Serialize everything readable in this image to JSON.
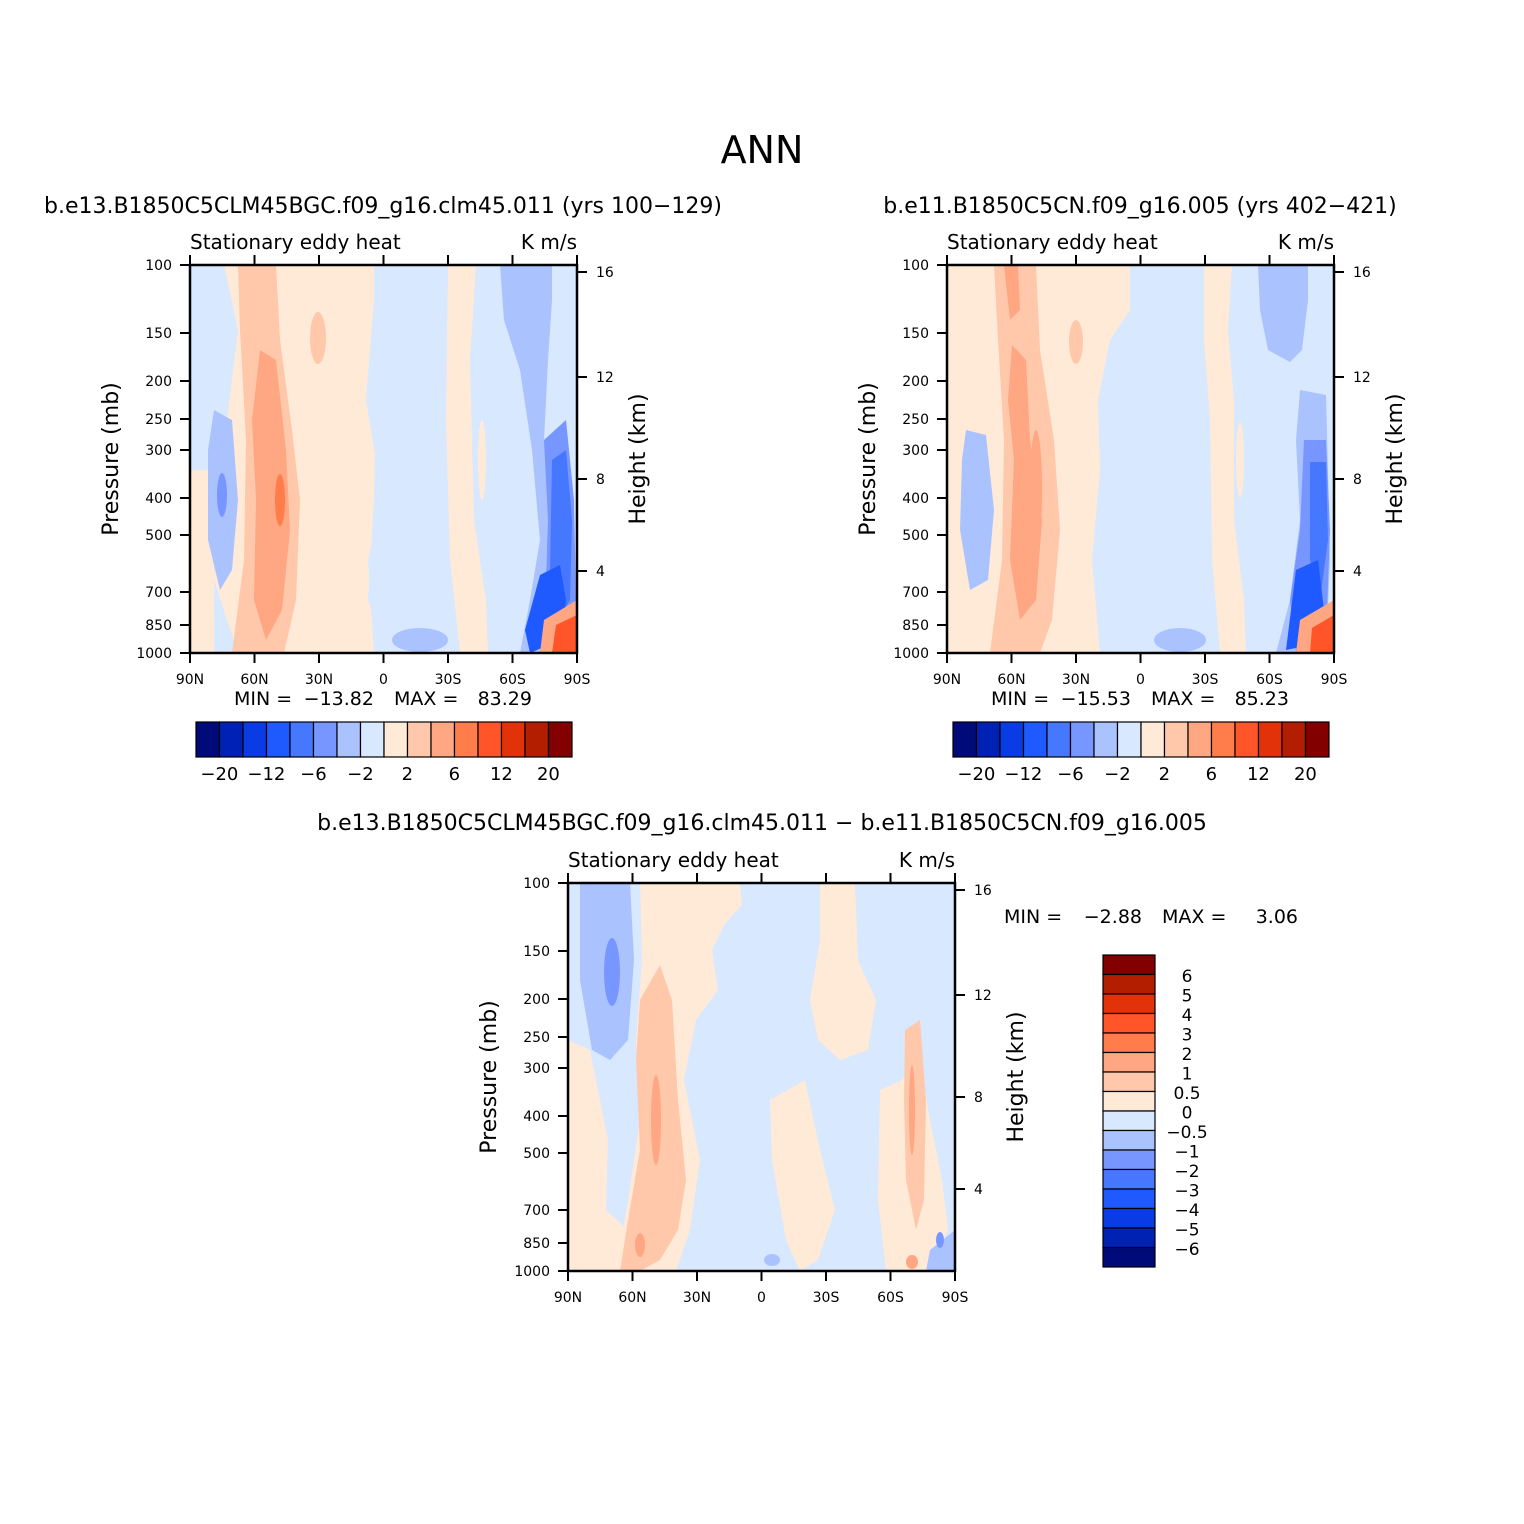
{
  "figure": {
    "title": "ANN"
  },
  "colors": {
    "abs_palette": [
      "#000a78",
      "#0022b4",
      "#0a3ce6",
      "#1e5aff",
      "#4678ff",
      "#7896ff",
      "#aac3ff",
      "#d7e8ff",
      "#ffead8",
      "#ffc8aa",
      "#ffa682",
      "#ff7d4b",
      "#ff5528",
      "#e1320a",
      "#b41e00",
      "#820000"
    ],
    "diff_palette": [
      "#000a78",
      "#0022b4",
      "#0a3ce6",
      "#1e5aff",
      "#4678ff",
      "#7896ff",
      "#aac3ff",
      "#d7e8ff",
      "#ffead8",
      "#ffc8aa",
      "#ffa682",
      "#ff7d4b",
      "#ff5528",
      "#e1320a",
      "#b41e00",
      "#820000"
    ]
  },
  "chart_data": [
    {
      "type": "heatmap",
      "title": "b.e13.B1850C5CLM45BGC.f09_g16.clm45.011 (yrs 100−129)",
      "left_label": "Stationary eddy heat",
      "right_label": "K m/s",
      "ylabel": "Pressure (mb)",
      "y2label": "Height (km)",
      "x_ticks": [
        "90N",
        "60N",
        "30N",
        "0",
        "30S",
        "60S",
        "90S"
      ],
      "y_ticks": [
        "100",
        "150",
        "200",
        "250",
        "300",
        "400",
        "500",
        "700",
        "850",
        "1000"
      ],
      "y2_ticks": [
        "16",
        "12",
        "8",
        "4"
      ],
      "min_label": "MIN =",
      "min_value": "−13.82",
      "max_label": "MAX =",
      "max_value": "83.29",
      "colorbar_labels": [
        "−20",
        "−12",
        "−6",
        "−2",
        "2",
        "6",
        "12",
        "20"
      ]
    },
    {
      "type": "heatmap",
      "title": "b.e11.B1850C5CN.f09_g16.005 (yrs 402−421)",
      "left_label": "Stationary eddy heat",
      "right_label": "K m/s",
      "ylabel": "Pressure (mb)",
      "y2label": "Height (km)",
      "x_ticks": [
        "90N",
        "60N",
        "30N",
        "0",
        "30S",
        "60S",
        "90S"
      ],
      "y_ticks": [
        "100",
        "150",
        "200",
        "250",
        "300",
        "400",
        "500",
        "700",
        "850",
        "1000"
      ],
      "y2_ticks": [
        "16",
        "12",
        "8",
        "4"
      ],
      "min_label": "MIN =",
      "min_value": "−15.53",
      "max_label": "MAX =",
      "max_value": "85.23",
      "colorbar_labels": [
        "−20",
        "−12",
        "−6",
        "−2",
        "2",
        "6",
        "12",
        "20"
      ]
    },
    {
      "type": "heatmap",
      "title": "b.e13.B1850C5CLM45BGC.f09_g16.clm45.011 − b.e11.B1850C5CN.f09_g16.005",
      "left_label": "Stationary eddy heat",
      "right_label": "K m/s",
      "ylabel": "Pressure (mb)",
      "y2label": "Height (km)",
      "x_ticks": [
        "90N",
        "60N",
        "30N",
        "0",
        "30S",
        "60S",
        "90S"
      ],
      "y_ticks": [
        "100",
        "150",
        "200",
        "250",
        "300",
        "400",
        "500",
        "700",
        "850",
        "1000"
      ],
      "y2_ticks": [
        "16",
        "12",
        "8",
        "4"
      ],
      "min_label": "MIN =",
      "min_value": "−2.88",
      "max_label": "MAX =",
      "max_value": "3.06",
      "colorbar_labels": [
        "6",
        "5",
        "4",
        "3",
        "2",
        "1",
        "0.5",
        "0",
        "−0.5",
        "−1",
        "−2",
        "−3",
        "−4",
        "−5",
        "−6"
      ]
    }
  ]
}
